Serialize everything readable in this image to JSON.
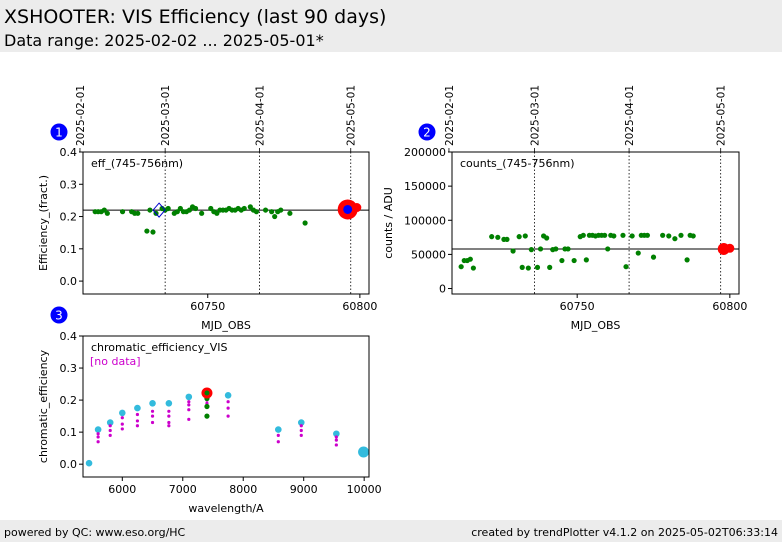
{
  "header": {
    "title": "XSHOOTER: VIS Efficiency (last 90 days)",
    "subtitle": "Data range: 2025-02-02 ... 2025-05-01*"
  },
  "footer": {
    "left": "powered by QC: www.eso.org/HC",
    "right": "created by trendPlotter v4.1.2 on 2025-05-02T06:33:14"
  },
  "colors": {
    "data": "#008000",
    "latest": "#ff0000",
    "latest_core": "#0000ff",
    "ref": "#33bbdd",
    "nodata": "#cc00cc",
    "badge": "#0000ff"
  },
  "chart_data": [
    {
      "id": "1",
      "type": "scatter",
      "xlabel": "MJD_OBS",
      "ylabel": "Efficiency_(fract.)",
      "annotation": "eff_(745-756nm)",
      "xlim": [
        60709,
        60803
      ],
      "ylim": [
        -0.04,
        0.4
      ],
      "xticks": [
        60750,
        60800
      ],
      "yticks": [
        0.0,
        0.1,
        0.2,
        0.3,
        0.4
      ],
      "ytick_labels": [
        "0.0",
        "0.1",
        "0.2",
        "0.3",
        "0.4"
      ],
      "ref_line": 0.22,
      "date_markers": [
        {
          "x": 60708,
          "label": "2025-02-01"
        },
        {
          "x": 60736,
          "label": "2025-03-01"
        },
        {
          "x": 60767,
          "label": "2025-04-01"
        },
        {
          "x": 60797,
          "label": "2025-05-01"
        }
      ],
      "series": [
        {
          "style": "green-dot",
          "x": [
            60713,
            60714,
            60715,
            60716,
            60717,
            60722,
            60725,
            60726,
            60727,
            60730,
            60731,
            60732,
            60733,
            60735,
            60736,
            60737,
            60739,
            60740,
            60741,
            60742,
            60743,
            60744,
            60745,
            60746,
            60748,
            60751,
            60752,
            60753,
            60754,
            60755,
            60756,
            60757,
            60758,
            60759,
            60760,
            60761,
            60762,
            60764,
            60765,
            60766,
            60769,
            60771,
            60772,
            60773,
            60774,
            60777,
            60782
          ],
          "y": [
            0.215,
            0.215,
            0.215,
            0.22,
            0.21,
            0.215,
            0.215,
            0.21,
            0.21,
            0.155,
            0.22,
            0.152,
            0.21,
            0.225,
            0.22,
            0.225,
            0.21,
            0.215,
            0.225,
            0.215,
            0.215,
            0.22,
            0.23,
            0.225,
            0.21,
            0.225,
            0.215,
            0.21,
            0.22,
            0.22,
            0.22,
            0.225,
            0.22,
            0.22,
            0.225,
            0.22,
            0.225,
            0.23,
            0.22,
            0.215,
            0.22,
            0.215,
            0.2,
            0.215,
            0.22,
            0.21,
            0.18
          ]
        },
        {
          "style": "outlier-diamond",
          "x": [
            60734
          ],
          "y": [
            0.22
          ]
        },
        {
          "style": "latest",
          "x": [
            60796
          ],
          "y": [
            0.222
          ]
        },
        {
          "style": "latest-small",
          "x": [
            60799
          ],
          "y": [
            0.228
          ]
        }
      ]
    },
    {
      "id": "2",
      "type": "scatter",
      "xlabel": "MJD_OBS",
      "ylabel": "counts / ADU",
      "annotation": "counts_(745-756nm)",
      "xlim": [
        60709,
        60803
      ],
      "ylim": [
        -8000,
        200000
      ],
      "xticks": [
        60750,
        60800
      ],
      "yticks": [
        0,
        50000,
        100000,
        150000,
        200000
      ],
      "ytick_labels": [
        "0",
        "50000",
        "100000",
        "150000",
        "200000"
      ],
      "ref_line": 58000,
      "date_markers": [
        {
          "x": 60708,
          "label": "2025-02-01"
        },
        {
          "x": 60736,
          "label": "2025-03-01"
        },
        {
          "x": 60767,
          "label": "2025-04-01"
        },
        {
          "x": 60797,
          "label": "2025-05-01"
        }
      ],
      "series": [
        {
          "style": "green-dot",
          "x": [
            60712,
            60713,
            60714,
            60715,
            60716,
            60722,
            60724,
            60726,
            60727,
            60729,
            60731,
            60732,
            60733,
            60734,
            60735,
            60737,
            60738,
            60739,
            60740,
            60741,
            60742,
            60743,
            60745,
            60746,
            60747,
            60749,
            60751,
            60752,
            60753,
            60754,
            60755,
            60756,
            60757,
            60758,
            60759,
            60760,
            60761,
            60762,
            60765,
            60766,
            60768,
            60770,
            60771,
            60772,
            60773,
            60775,
            60778,
            60780,
            60782,
            60784,
            60786,
            60787,
            60788
          ],
          "y": [
            32000,
            41000,
            41000,
            43000,
            30000,
            76000,
            75000,
            72000,
            72000,
            55000,
            76000,
            31000,
            77000,
            30000,
            57000,
            31000,
            58000,
            77000,
            74000,
            31000,
            57000,
            58000,
            41000,
            58000,
            58000,
            41000,
            76000,
            78000,
            42000,
            78000,
            78000,
            77000,
            78000,
            78000,
            78000,
            58000,
            78000,
            77000,
            78000,
            32000,
            77000,
            52000,
            78000,
            78000,
            78000,
            46000,
            78000,
            77000,
            73000,
            78000,
            42000,
            78000,
            77000
          ]
        },
        {
          "style": "latest",
          "x": [
            60798
          ],
          "y": [
            58000
          ]
        },
        {
          "style": "latest-small",
          "x": [
            60800
          ],
          "y": [
            59000
          ]
        }
      ]
    },
    {
      "id": "3",
      "type": "scatter",
      "xlabel": "wavelength/A",
      "ylabel": "chromatic_efficiency",
      "annotation": "chromatic_efficiency_VIS",
      "nodata_label": "[no data]",
      "xlim": [
        5350,
        10080
      ],
      "ylim": [
        -0.04,
        0.4
      ],
      "xticks": [
        6000,
        7000,
        8000,
        9000,
        10000
      ],
      "yticks": [
        0.0,
        0.1,
        0.2,
        0.3,
        0.4
      ],
      "ytick_labels": [
        "0.0",
        "0.1",
        "0.2",
        "0.3",
        "0.4"
      ],
      "series": [
        {
          "style": "reference",
          "x": [
            5450,
            5600,
            5800,
            6000,
            6250,
            6500,
            6770,
            7100,
            7400,
            7750,
            8580,
            8960,
            9540,
            9990
          ],
          "y": [
            0.003,
            0.108,
            0.13,
            0.16,
            0.175,
            0.19,
            0.19,
            0.21,
            0.22,
            0.215,
            0.108,
            0.13,
            0.095,
            0.038
          ]
        },
        {
          "style": "magenta-dot",
          "x": [
            5600,
            5600,
            5600,
            5800,
            5800,
            5800,
            6000,
            6000,
            6000,
            6250,
            6250,
            6250,
            6500,
            6500,
            6500,
            6770,
            6770,
            6770,
            6770,
            7100,
            7100,
            7100,
            7100,
            7400,
            7400,
            7750,
            7750,
            7750,
            8580,
            8580,
            8960,
            8960,
            8960,
            9540,
            9540,
            9540
          ],
          "y": [
            0.07,
            0.085,
            0.095,
            0.09,
            0.105,
            0.12,
            0.11,
            0.125,
            0.145,
            0.12,
            0.135,
            0.155,
            0.13,
            0.15,
            0.165,
            0.12,
            0.13,
            0.15,
            0.165,
            0.14,
            0.17,
            0.185,
            0.195,
            0.19,
            0.2,
            0.15,
            0.175,
            0.195,
            0.07,
            0.09,
            0.09,
            0.105,
            0.12,
            0.06,
            0.075,
            0.085
          ]
        },
        {
          "style": "green-dot",
          "x": [
            7400,
            7400,
            7400,
            7400
          ],
          "y": [
            0.15,
            0.18,
            0.205,
            0.215
          ]
        },
        {
          "style": "latest",
          "x": [
            7400
          ],
          "y": [
            0.222
          ]
        }
      ]
    }
  ]
}
